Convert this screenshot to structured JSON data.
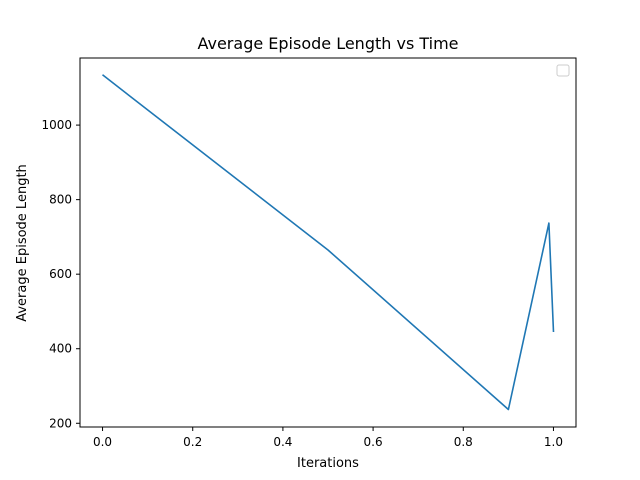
{
  "chart_data": {
    "type": "line",
    "title": "Average Episode Length vs Time",
    "xlabel": "Iterations",
    "ylabel": "Average Episode Length",
    "xlim": [
      -0.05,
      1.05
    ],
    "ylim": [
      190,
      1180
    ],
    "xticks": [
      0.0,
      0.2,
      0.4,
      0.6,
      0.8,
      1.0
    ],
    "xtick_labels": [
      "0.0",
      "0.2",
      "0.4",
      "0.6",
      "0.8",
      "1.0"
    ],
    "yticks": [
      200,
      400,
      600,
      800,
      1000
    ],
    "ytick_labels": [
      "200",
      "400",
      "600",
      "800",
      "1000"
    ],
    "grid": false,
    "legend": {
      "position": "upper-right",
      "entries": []
    },
    "series": [
      {
        "color": "#1f77b4",
        "x": [
          0.0,
          0.5,
          0.9,
          0.99,
          1.0
        ],
        "y": [
          1135,
          665,
          237,
          737,
          445
        ]
      }
    ]
  }
}
